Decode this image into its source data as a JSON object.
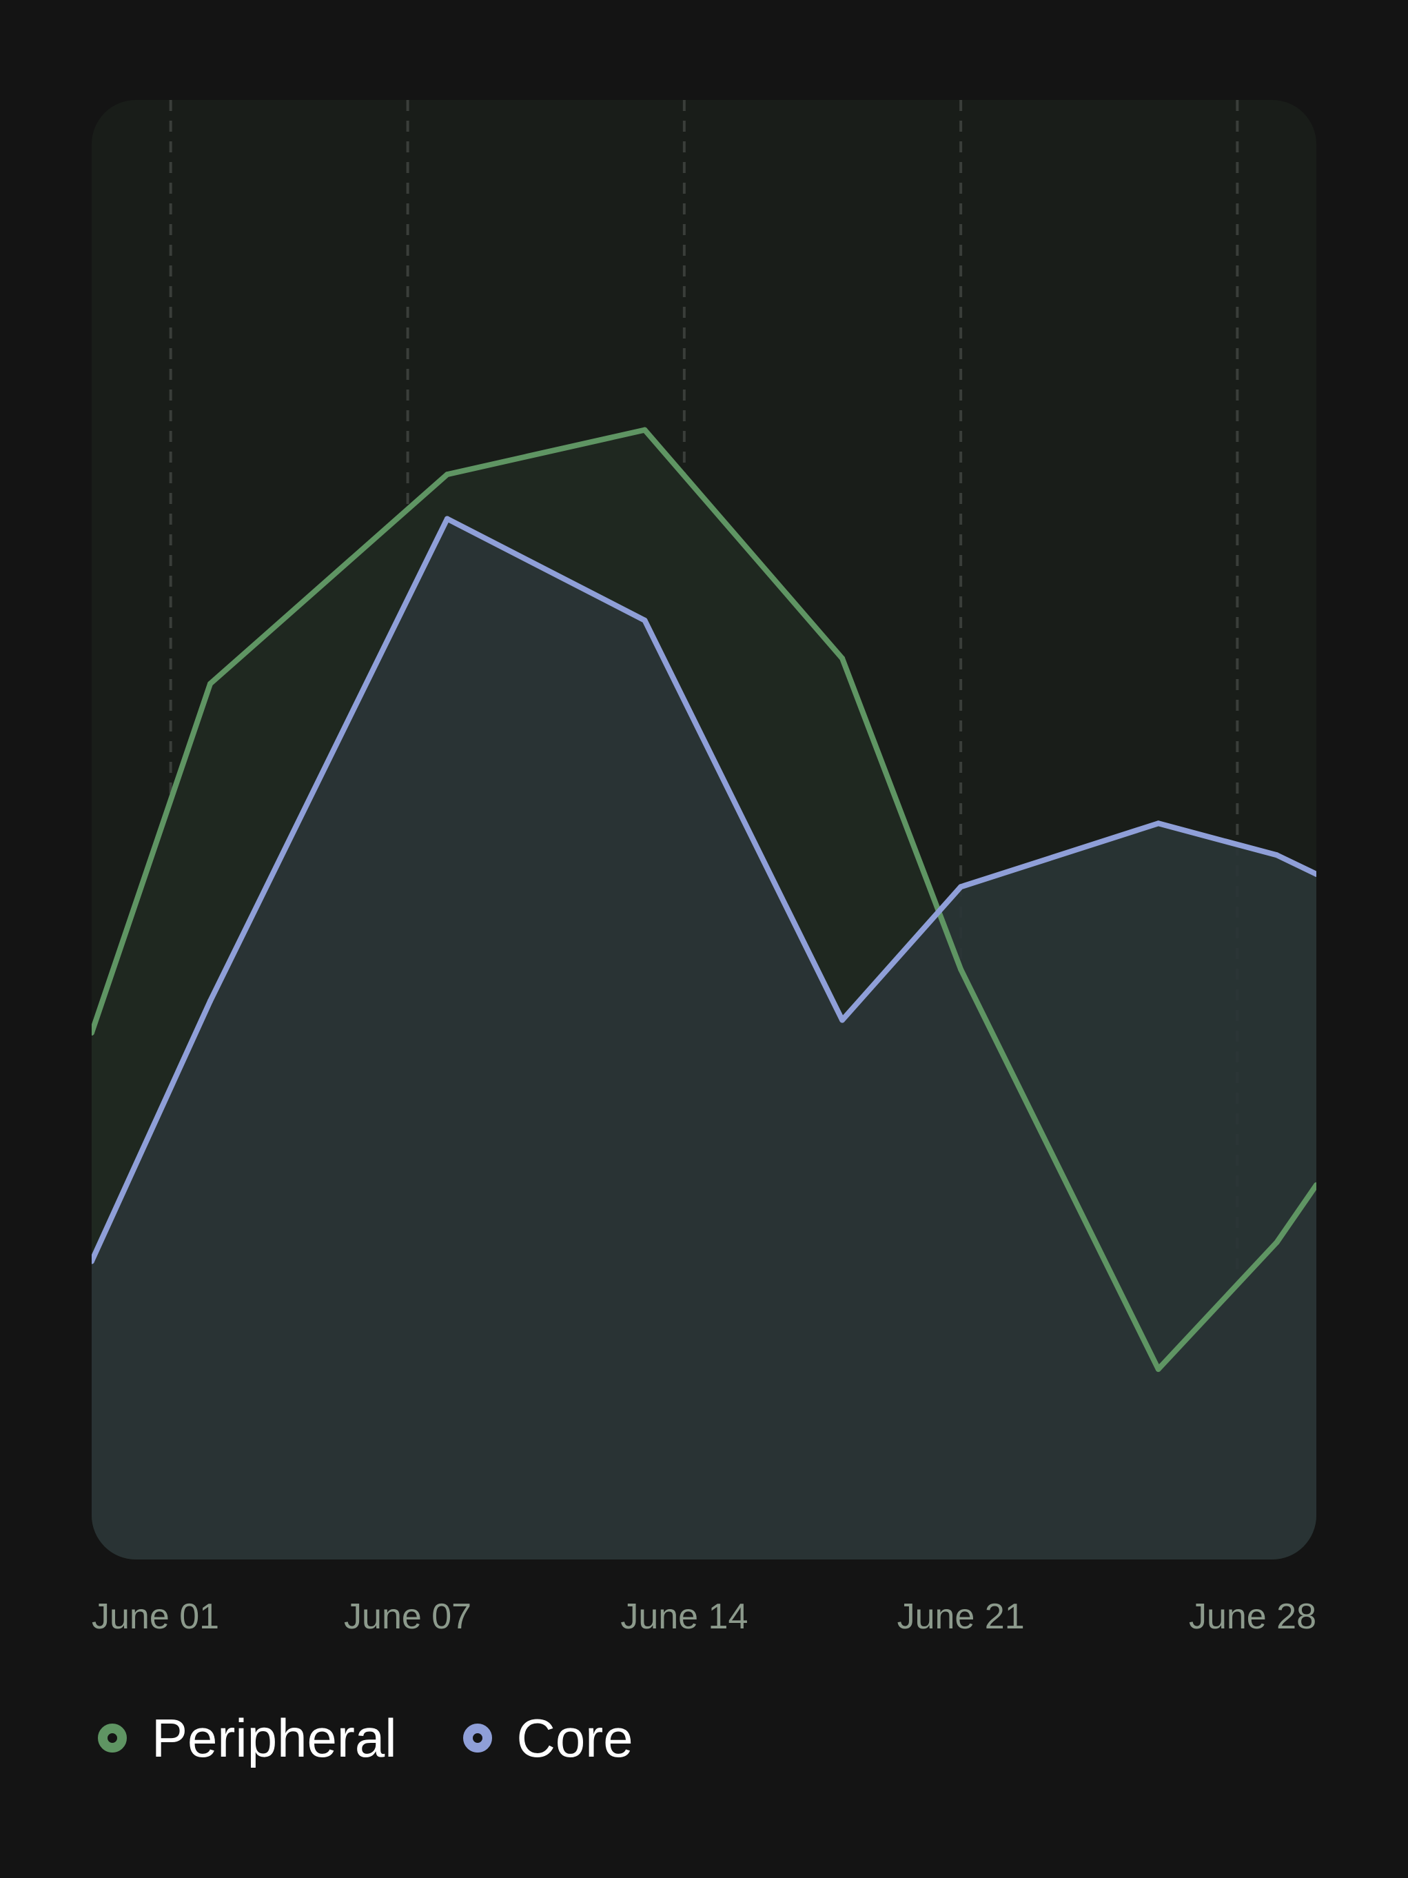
{
  "chart_data": {
    "type": "area",
    "x": [
      "2024-05-30",
      "2024-06-02",
      "2024-06-08",
      "2024-06-13",
      "2024-06-18",
      "2024-06-21",
      "2024-06-26",
      "2024-06-29",
      "2024-06-30"
    ],
    "x_ticks": [
      "June 01",
      "June 07",
      "June 14",
      "June 21",
      "June 28"
    ],
    "series": [
      {
        "name": "Peripheral",
        "color": "#5f9563",
        "values": [
          83,
          138,
          171,
          178,
          142,
          93,
          30,
          50,
          59
        ]
      },
      {
        "name": "Core",
        "color": "#8f9fd8",
        "values": [
          47,
          88,
          164,
          148,
          85,
          106,
          116,
          111,
          108
        ]
      }
    ],
    "ylim": [
      0,
      230
    ],
    "xlabel": "",
    "ylabel": "",
    "grid": {
      "vertical": true,
      "horizontal": false,
      "style": "dashed"
    },
    "legend": {
      "position": "bottom-left",
      "items": [
        {
          "label": "Peripheral",
          "color": "#5f9563"
        },
        {
          "label": "Core",
          "color": "#8f9fd8"
        }
      ]
    }
  }
}
